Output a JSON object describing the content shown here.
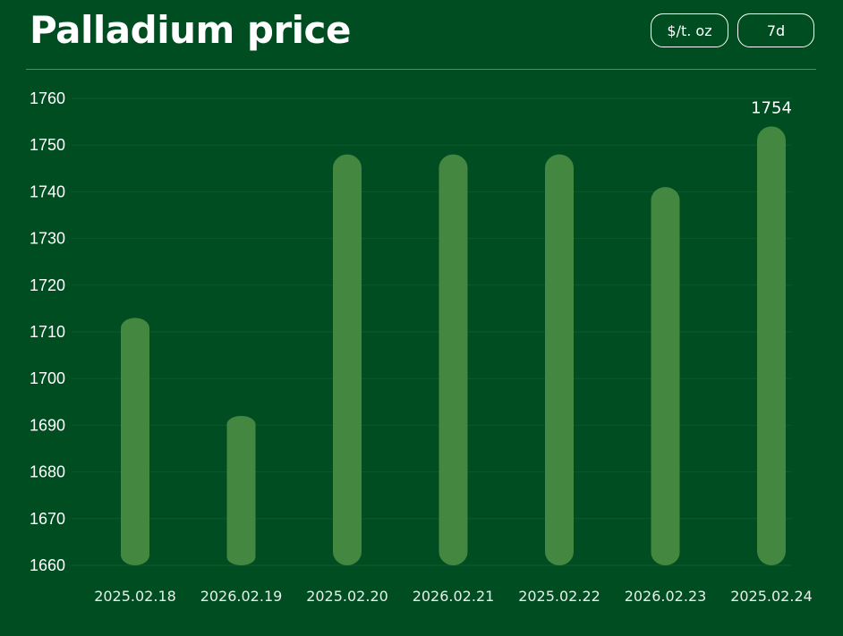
{
  "header": {
    "title": "Palladium price"
  },
  "toolbar": {
    "unit_label": "$/t. oz",
    "range_label": "7d"
  },
  "colors": {
    "background": "#004d22",
    "bar": "#438740",
    "gridline": "#0c5a2c",
    "divider": "#4f8d5c"
  },
  "chart_data": {
    "type": "bar",
    "title": "Palladium price",
    "xlabel": "",
    "ylabel": "",
    "categories": [
      "2025.02.18",
      "2026.02.19",
      "2025.02.20",
      "2026.02.21",
      "2025.02.22",
      "2026.02.23",
      "2025.02.24"
    ],
    "values": [
      1713,
      1692,
      1748,
      1748,
      1748,
      1741,
      1754
    ],
    "ylim": [
      1660,
      1760
    ],
    "yticks": [
      1660,
      1670,
      1680,
      1690,
      1700,
      1710,
      1720,
      1730,
      1740,
      1750,
      1760
    ],
    "data_labels": [
      {
        "category": "2025.02.24",
        "text": "1754"
      }
    ],
    "grid": true,
    "legend": "none"
  }
}
